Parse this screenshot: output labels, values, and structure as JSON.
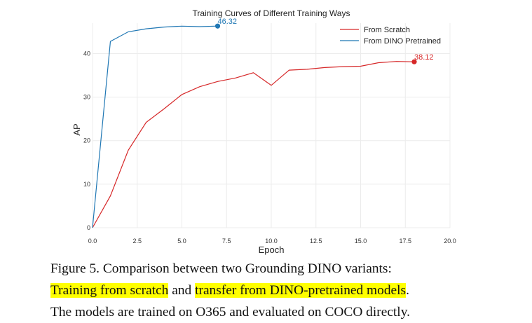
{
  "chart_data": {
    "type": "line",
    "title": "Training Curves of Different Training Ways",
    "xlabel": "Epoch",
    "ylabel": "AP",
    "xlim": [
      0,
      20
    ],
    "ylim": [
      0,
      47
    ],
    "x_ticks": [
      "0.0",
      "2.5",
      "5.0",
      "7.5",
      "10.0",
      "12.5",
      "15.0",
      "17.5",
      "20.0"
    ],
    "y_ticks": [
      "0",
      "10",
      "20",
      "30",
      "40"
    ],
    "x_tick_values": [
      0,
      2.5,
      5,
      7.5,
      10,
      12.5,
      15,
      17.5,
      20
    ],
    "y_tick_values": [
      0,
      10,
      20,
      30,
      40
    ],
    "grid": true,
    "legend_position": "top-right",
    "series": [
      {
        "name": "From Scratch",
        "color": "#d62728",
        "x": [
          0,
          1,
          2,
          3,
          4,
          5,
          6,
          7,
          8,
          9,
          10,
          11,
          12,
          13,
          14,
          15,
          16,
          17,
          18
        ],
        "values": [
          0,
          7.3,
          17.8,
          24.2,
          27.3,
          30.6,
          32.4,
          33.6,
          34.4,
          35.6,
          32.7,
          36.2,
          36.4,
          36.8,
          37.0,
          37.1,
          37.9,
          38.2,
          38.12
        ],
        "end_label": "38.12"
      },
      {
        "name": "From DINO Pretrained",
        "color": "#1f77b4",
        "x": [
          0,
          1,
          2,
          3,
          4,
          5,
          6,
          7
        ],
        "values": [
          0,
          42.8,
          45.0,
          45.7,
          46.1,
          46.3,
          46.2,
          46.32
        ],
        "end_label": "46.32"
      }
    ]
  },
  "caption": {
    "line1": "Figure 5.  Comparison between two Grounding DINO variants:",
    "line2_hl1": "Training from scratch",
    "line2_mid": " and ",
    "line2_hl2": "transfer from DINO-pretrained models",
    "line2_end": ".",
    "line3": "The models are trained on O365 and evaluated on COCO directly."
  }
}
